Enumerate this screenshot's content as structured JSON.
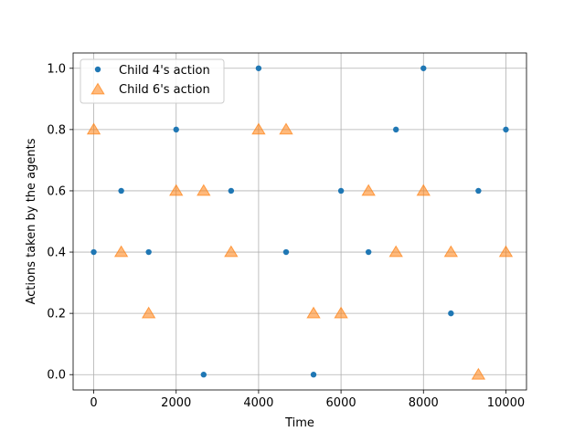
{
  "chart_data": {
    "type": "scatter",
    "xlabel": "Time",
    "ylabel": "Actions taken by the agents",
    "xlim": [
      -500,
      10500
    ],
    "ylim": [
      -0.05,
      1.05
    ],
    "xticks": [
      0,
      2000,
      4000,
      6000,
      8000,
      10000
    ],
    "xtick_labels": [
      "0",
      "2000",
      "4000",
      "6000",
      "8000",
      "10000"
    ],
    "yticks": [
      0.0,
      0.2,
      0.4,
      0.6,
      0.8,
      1.0
    ],
    "ytick_labels": [
      "0.0",
      "0.2",
      "0.4",
      "0.6",
      "0.8",
      "1.0"
    ],
    "grid": true,
    "legend_position": "top-left",
    "series": [
      {
        "name": "Child 4's action",
        "marker": "circle",
        "color": "#1f77b4",
        "x": [
          0,
          667,
          1333,
          2000,
          2667,
          3333,
          4000,
          4667,
          5333,
          6000,
          6667,
          7333,
          8000,
          8667,
          9333,
          10000
        ],
        "y": [
          0.4,
          0.6,
          0.4,
          0.8,
          0.0,
          0.6,
          1.0,
          0.4,
          0.0,
          0.6,
          0.4,
          0.8,
          1.0,
          0.2,
          0.6,
          0.8
        ]
      },
      {
        "name": "Child 6's action",
        "marker": "triangle",
        "color": "#ff7f0e",
        "x": [
          0,
          667,
          1333,
          2000,
          2667,
          3333,
          4000,
          4667,
          5333,
          6000,
          6667,
          7333,
          8000,
          8667,
          9333,
          10000
        ],
        "y": [
          0.8,
          0.4,
          0.2,
          0.6,
          0.6,
          0.4,
          0.8,
          0.8,
          0.2,
          0.2,
          0.6,
          0.4,
          0.6,
          0.4,
          0.0,
          0.4
        ]
      }
    ]
  }
}
